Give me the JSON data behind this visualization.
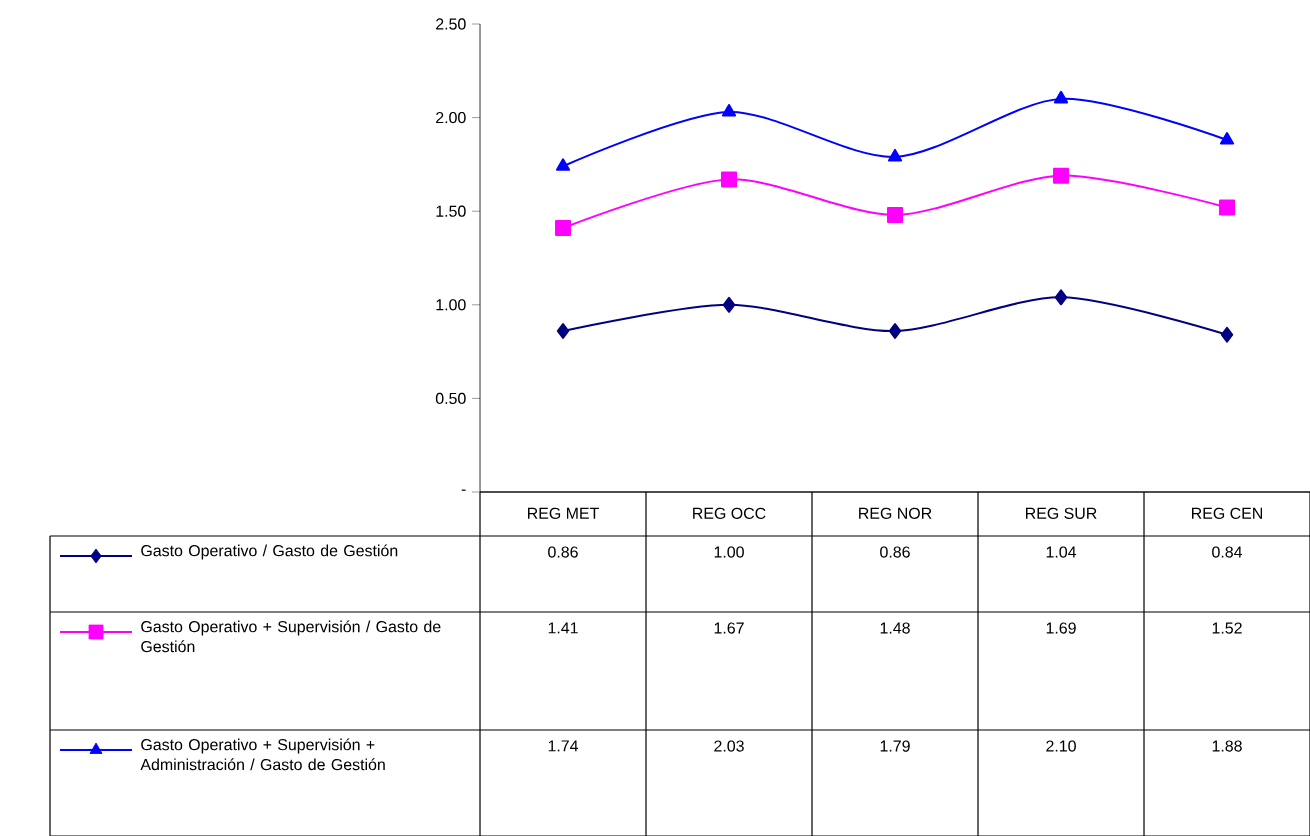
{
  "chart_data": {
    "type": "line",
    "categories": [
      "REG MET",
      "REG OCC",
      "REG NOR",
      "REG SUR",
      "REG CEN"
    ],
    "series": [
      {
        "name": "Gasto Operativo / Gasto de Gestión",
        "color": "#000080",
        "marker": "diamond",
        "values": [
          0.86,
          1.0,
          0.86,
          1.04,
          0.84
        ],
        "value_labels": [
          "0.86",
          "1.00",
          "0.86",
          "1.04",
          "0.84"
        ]
      },
      {
        "name": "Gasto Operativo + Supervisión / Gasto de Gestión",
        "color": "#ff00ff",
        "marker": "square",
        "values": [
          1.41,
          1.67,
          1.48,
          1.69,
          1.52
        ],
        "value_labels": [
          "1.41",
          "1.67",
          "1.48",
          "1.69",
          "1.52"
        ]
      },
      {
        "name": "Gasto Operativo + Supervisión + Administración / Gasto de Gestión",
        "color": "#0000ff",
        "marker": "triangle",
        "values": [
          1.74,
          2.03,
          1.79,
          2.1,
          1.88
        ],
        "value_labels": [
          "1.74",
          "2.03",
          "1.79",
          "2.10",
          "1.88"
        ]
      }
    ],
    "ylim": [
      0,
      2.5
    ],
    "yticks": [
      {
        "value": 0,
        "label": "-"
      },
      {
        "value": 0.5,
        "label": "0.50"
      },
      {
        "value": 1.0,
        "label": "1.00"
      },
      {
        "value": 1.5,
        "label": "1.50"
      },
      {
        "value": 2.0,
        "label": "2.00"
      },
      {
        "value": 2.5,
        "label": "2.50"
      }
    ],
    "legend": "bottom",
    "grid": false,
    "line_style": "solid"
  }
}
